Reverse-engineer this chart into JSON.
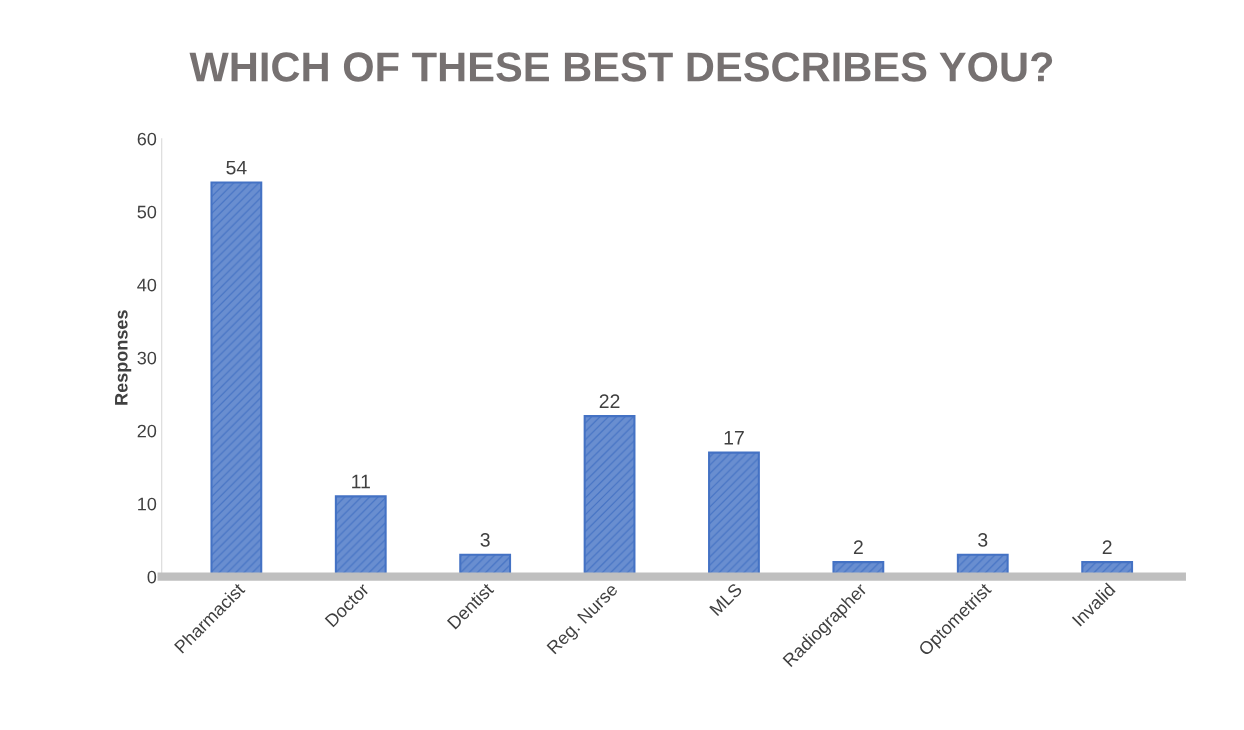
{
  "chart_data": {
    "type": "bar",
    "title": "WHICH OF THESE BEST DESCRIBES YOU?",
    "ylabel": "Responses",
    "categories": [
      "Pharmacist",
      "Doctor",
      "Dentist",
      "Reg. Nurse",
      "MLS",
      "Radiographer",
      "Optometrist",
      "Invalid"
    ],
    "values": [
      54,
      11,
      3,
      22,
      17,
      2,
      3,
      2
    ],
    "color": "#4472c4",
    "ylim": [
      0,
      60
    ],
    "yticks": [
      0,
      10,
      20,
      30,
      40,
      50,
      60
    ],
    "grid": false,
    "data_labels": true
  }
}
